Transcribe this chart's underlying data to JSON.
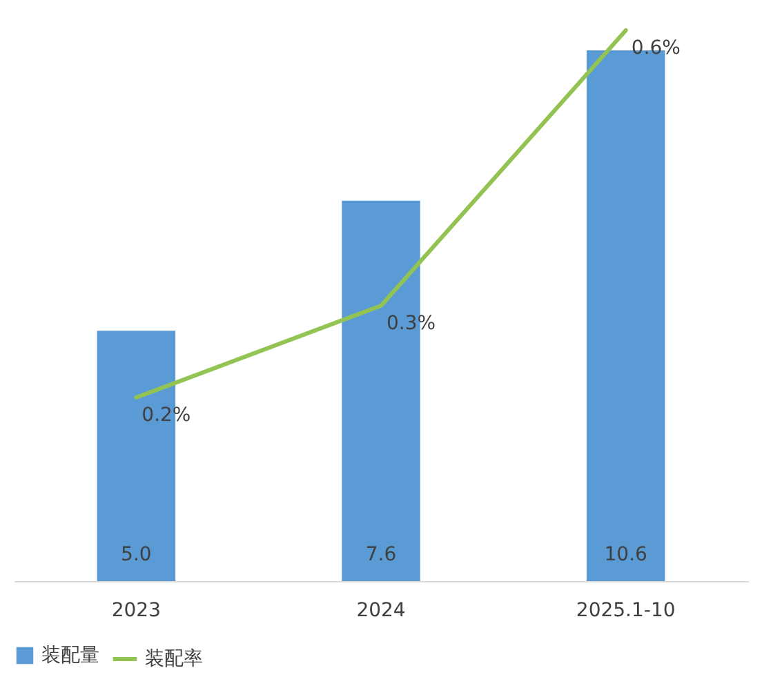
{
  "chart_data": {
    "type": "bar",
    "categories": [
      "2023",
      "2024",
      "2025.1-10"
    ],
    "tick_labels": "x",
    "legend": "bottom",
    "series": [
      {
        "name": "装配量",
        "color": "#5b9bd5",
        "values": [
          5.0,
          7.6,
          10.6
        ],
        "value_labels": [
          "5.0",
          "7.6",
          "10.6"
        ]
      },
      {
        "name": "装配率",
        "type": "line",
        "axis": "y2",
        "color": "#92c353",
        "values": [
          0.2,
          0.3,
          0.6
        ],
        "value_labels": [
          "0.2%",
          "0.3%",
          "0.6%"
        ]
      }
    ]
  }
}
